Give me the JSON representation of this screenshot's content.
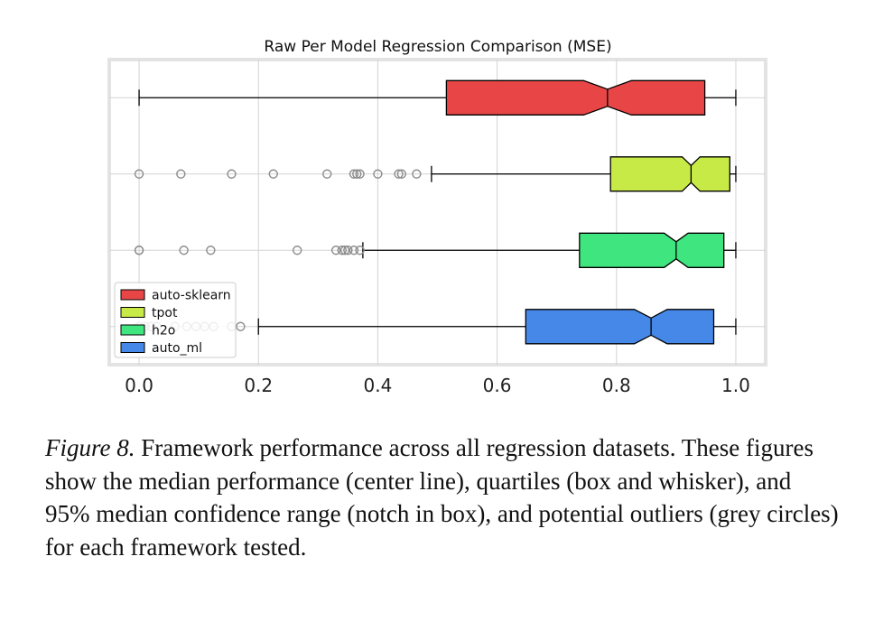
{
  "chart_data": {
    "type": "boxplot",
    "title": "Raw Per Model Regression Comparison (MSE)",
    "orientation": "horizontal",
    "notched": true,
    "xlim": [
      -0.05,
      1.05
    ],
    "xticks": [
      0.0,
      0.2,
      0.4,
      0.6,
      0.8,
      1.0
    ],
    "xtick_labels": [
      "0.0",
      "0.2",
      "0.4",
      "0.6",
      "0.8",
      "1.0"
    ],
    "grid": true,
    "legend_position": "lower-left",
    "series": [
      {
        "name": "auto-sklearn",
        "color": "#e84646",
        "whisker_low": 0.0,
        "q1": 0.515,
        "median": 0.785,
        "q3": 0.948,
        "whisker_high": 1.0,
        "notch_low": 0.745,
        "notch_high": 0.825,
        "outliers": []
      },
      {
        "name": "tpot",
        "color": "#c8ea46",
        "whisker_low": 0.49,
        "q1": 0.79,
        "median": 0.925,
        "q3": 0.99,
        "whisker_high": 1.0,
        "notch_low": 0.91,
        "notch_high": 0.94,
        "outliers": [
          0.0,
          0.07,
          0.155,
          0.225,
          0.315,
          0.36,
          0.365,
          0.37,
          0.4,
          0.435,
          0.44,
          0.465
        ]
      },
      {
        "name": "h2o",
        "color": "#3fe57e",
        "whisker_low": 0.375,
        "q1": 0.738,
        "median": 0.9,
        "q3": 0.98,
        "whisker_high": 1.0,
        "notch_low": 0.88,
        "notch_high": 0.92,
        "outliers": [
          0.0,
          0.0,
          0.075,
          0.12,
          0.265,
          0.33,
          0.34,
          0.345,
          0.35,
          0.36,
          0.37
        ]
      },
      {
        "name": "auto_ml",
        "color": "#4688e8",
        "whisker_low": 0.2,
        "q1": 0.648,
        "median": 0.858,
        "q3": 0.963,
        "whisker_high": 1.0,
        "notch_low": 0.83,
        "notch_high": 0.885,
        "outliers": [
          0.0,
          0.01,
          0.02,
          0.03,
          0.06,
          0.08,
          0.095,
          0.11,
          0.125,
          0.155,
          0.17
        ]
      }
    ]
  },
  "caption": {
    "label": "Figure 8.",
    "text": " Framework performance across all regression datasets. These figures show the median performance (center line), quartiles (box and whisker), and 95% median confidence range (notch in box), and potential outliers (grey circles) for each framework tested."
  }
}
